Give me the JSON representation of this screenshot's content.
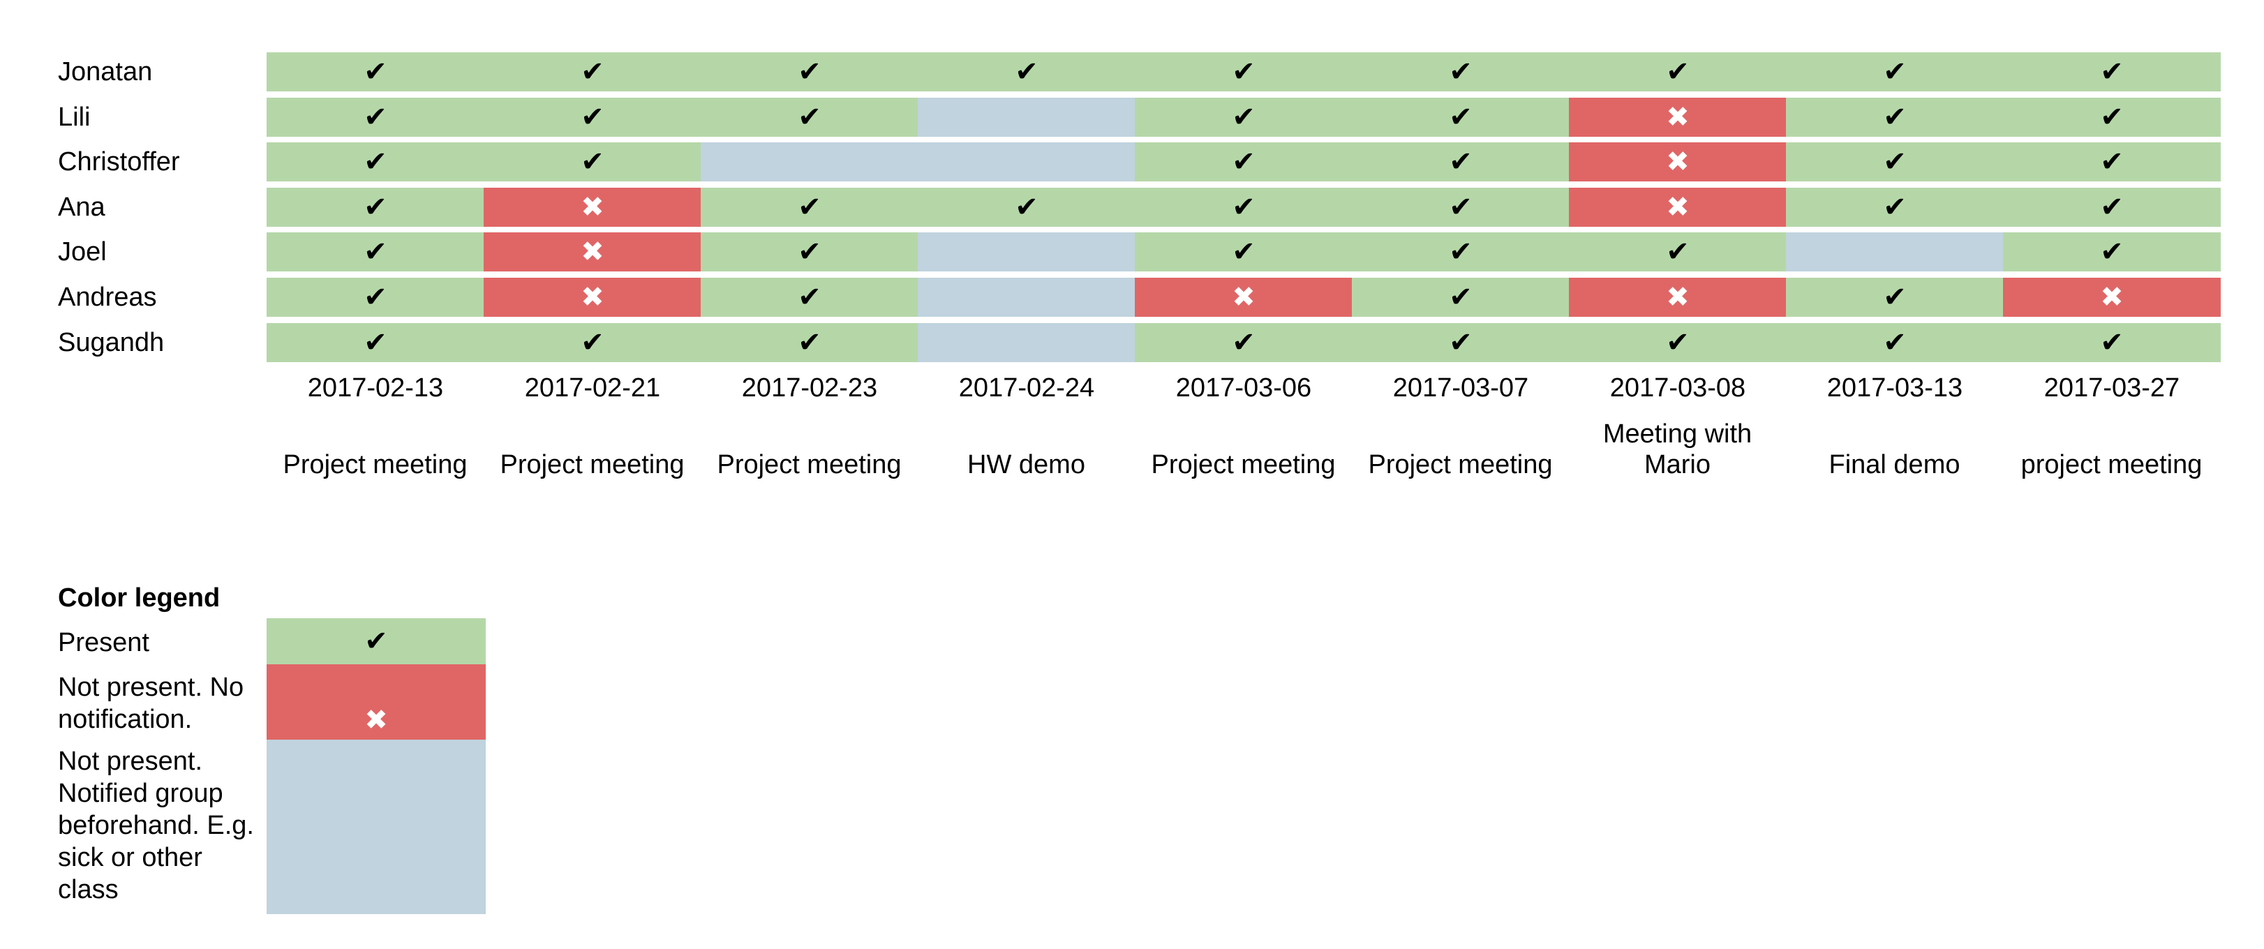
{
  "chart_data": {
    "type": "table",
    "title": "",
    "people": [
      "Jonatan",
      "Lili",
      "Christoffer",
      "Ana",
      "Joel",
      "Andreas",
      "Sugandh"
    ],
    "dates": [
      "2017-02-13",
      "2017-02-21",
      "2017-02-23",
      "2017-02-24",
      "2017-03-06",
      "2017-03-07",
      "2017-03-08",
      "2017-03-13",
      "2017-03-27"
    ],
    "events": [
      "Project meeting",
      "Project meeting",
      "Project meeting",
      "HW demo",
      "Project meeting",
      "Project meeting",
      "Meeting with Mario",
      "Final demo",
      "project meeting"
    ],
    "attendance": [
      [
        "present",
        "present",
        "present",
        "present",
        "present",
        "present",
        "present",
        "present",
        "present"
      ],
      [
        "present",
        "present",
        "present",
        "notified",
        "present",
        "present",
        "absent",
        "present",
        "present"
      ],
      [
        "present",
        "present",
        "notified",
        "notified",
        "present",
        "present",
        "absent",
        "present",
        "present"
      ],
      [
        "present",
        "absent",
        "present",
        "present",
        "present",
        "present",
        "absent",
        "present",
        "present"
      ],
      [
        "present",
        "absent",
        "present",
        "notified",
        "present",
        "present",
        "present",
        "notified",
        "present"
      ],
      [
        "present",
        "absent",
        "present",
        "notified",
        "absent",
        "present",
        "absent",
        "present",
        "absent"
      ],
      [
        "present",
        "present",
        "present",
        "notified",
        "present",
        "present",
        "present",
        "present",
        "present"
      ]
    ],
    "legend": {
      "title": "Color legend",
      "items": [
        {
          "status": "present",
          "label": "Present",
          "color": "#b5d7a8"
        },
        {
          "status": "absent",
          "label": "Not present. No notification.",
          "color": "#e06666"
        },
        {
          "status": "notified",
          "label": "Not present. Notified group beforehand. E.g. sick or other class",
          "color": "#c0d3de"
        }
      ]
    },
    "symbols": {
      "present": "✔",
      "absent": "✖"
    }
  }
}
